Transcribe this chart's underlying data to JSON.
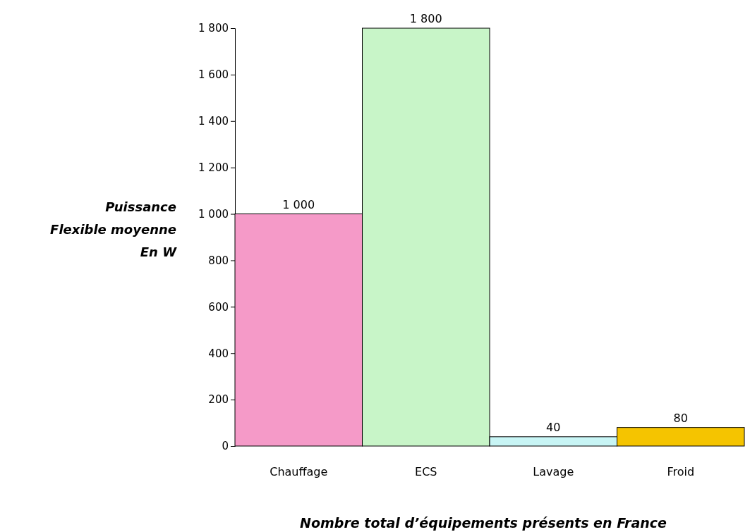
{
  "chart_data": {
    "type": "bar",
    "xlabel": "Nombre total d’équipements présents en France",
    "ylabel": "Puissance\nFlexible moyenne\nEn W",
    "categories": [
      "Chauffage",
      "ECS",
      "Lavage",
      "Froid"
    ],
    "values": [
      1000,
      1800,
      40,
      80
    ],
    "colors": [
      "#f59ac8",
      "#c8f5c8",
      "#c8f5f5",
      "#f5c400"
    ],
    "value_labels": [
      "1 000",
      "1 800",
      "40",
      "80"
    ],
    "ylim": [
      0,
      1800
    ],
    "yticks": [
      0,
      200,
      400,
      600,
      800,
      {
        "value": 1000,
        "label": "1 000"
      },
      {
        "value": 1200,
        "label": "1 200"
      },
      {
        "value": 1400,
        "label": "1 400"
      },
      {
        "value": 1600,
        "label": "1 600"
      },
      {
        "value": 1800,
        "label": "1 800"
      }
    ],
    "grid": false
  }
}
